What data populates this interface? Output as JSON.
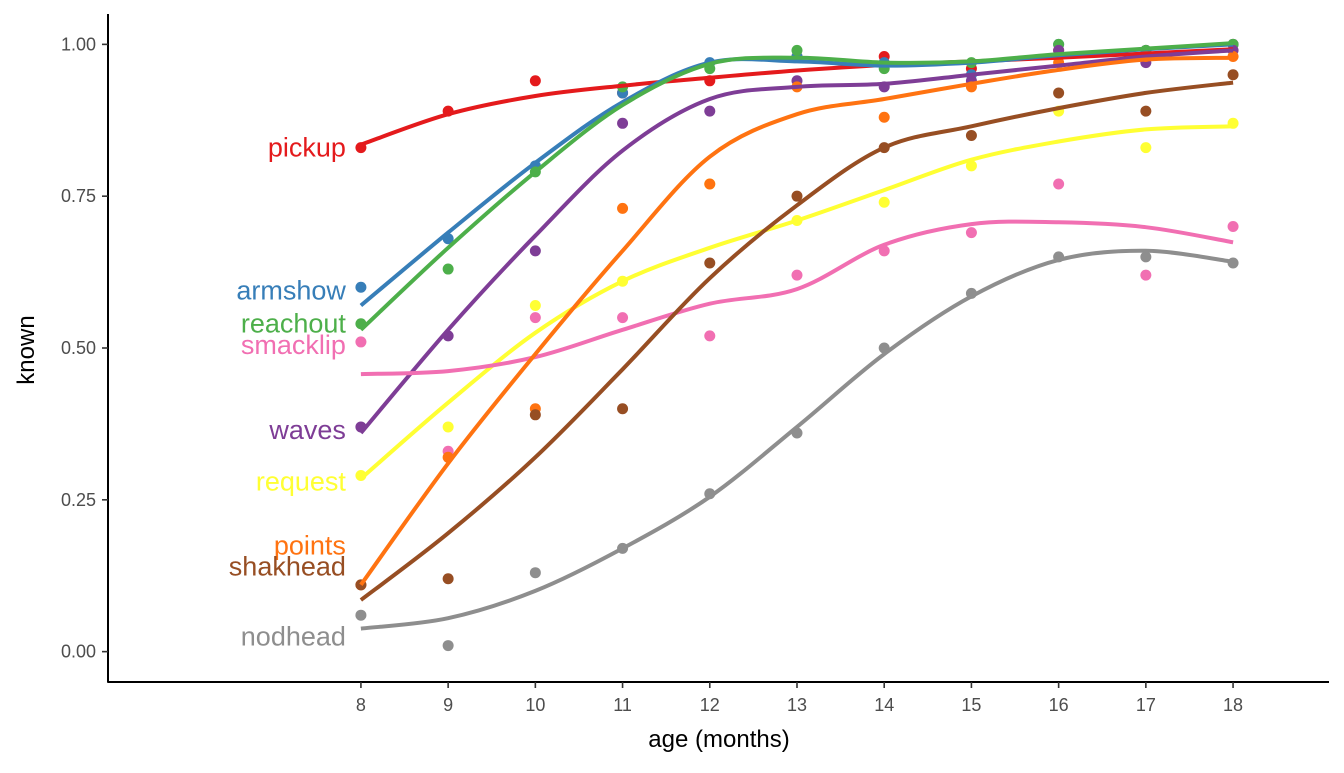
{
  "chart_data": {
    "type": "scatter",
    "title": "",
    "xlabel": "age (months)",
    "ylabel": "known",
    "xlim": [
      5.1,
      19.1
    ],
    "ylim": [
      -0.05,
      1.05
    ],
    "x_ticks": [
      8,
      9,
      10,
      11,
      12,
      13,
      14,
      15,
      16,
      17,
      18
    ],
    "y_ticks": [
      {
        "value": 0.0,
        "label": "0.00"
      },
      {
        "value": 0.25,
        "label": "0.25"
      },
      {
        "value": 0.5,
        "label": "0.50"
      },
      {
        "value": 0.75,
        "label": "0.75"
      },
      {
        "value": 1.0,
        "label": "1.00"
      }
    ],
    "grid": false,
    "legend": "none (direct labels at left)",
    "x": [
      8,
      9,
      10,
      11,
      12,
      13,
      14,
      15,
      16,
      17,
      18
    ],
    "series": [
      {
        "name": "pickup",
        "color": "#E41A1C",
        "points": [
          0.83,
          0.89,
          0.94,
          0.92,
          0.94,
          0.98,
          0.98,
          0.96,
          0.99,
          0.99,
          1.0
        ],
        "smooth": [
          0.835,
          0.885,
          0.915,
          0.932,
          0.945,
          0.957,
          0.966,
          0.972,
          0.978,
          0.985,
          0.992
        ]
      },
      {
        "name": "armshow",
        "color": "#377EB8",
        "points": [
          0.6,
          0.68,
          0.8,
          0.92,
          0.97,
          0.98,
          0.97,
          0.95,
          1.0,
          0.99,
          1.0
        ],
        "smooth": [
          0.57,
          0.69,
          0.805,
          0.905,
          0.97,
          0.972,
          0.965,
          0.97,
          0.982,
          0.992,
          1.0
        ]
      },
      {
        "name": "reachout",
        "color": "#4DAF4A",
        "points": [
          0.54,
          0.63,
          0.79,
          0.93,
          0.96,
          0.99,
          0.96,
          0.97,
          1.0,
          0.99,
          1.0
        ],
        "smooth": [
          0.53,
          0.665,
          0.79,
          0.9,
          0.968,
          0.978,
          0.97,
          0.972,
          0.984,
          0.993,
          1.002
        ]
      },
      {
        "name": "waves",
        "color": "#7E3D96",
        "points": [
          0.37,
          0.52,
          0.66,
          0.87,
          0.89,
          0.94,
          0.93,
          0.94,
          0.99,
          0.97,
          0.99
        ],
        "smooth": [
          0.36,
          0.53,
          0.685,
          0.825,
          0.91,
          0.93,
          0.935,
          0.95,
          0.965,
          0.98,
          0.99
        ]
      },
      {
        "name": "request",
        "color": "#FFFF33",
        "points": [
          0.29,
          0.37,
          0.57,
          0.61,
          0.77,
          0.71,
          0.74,
          0.8,
          0.89,
          0.83,
          0.87
        ],
        "smooth": [
          0.285,
          0.41,
          0.525,
          0.61,
          0.665,
          0.71,
          0.76,
          0.81,
          0.84,
          0.86,
          0.865
        ]
      },
      {
        "name": "smacklip",
        "color": "#F16FB2",
        "points": [
          0.51,
          0.33,
          0.55,
          0.55,
          0.52,
          0.62,
          0.66,
          0.69,
          0.77,
          0.62,
          0.7
        ],
        "smooth": [
          0.457,
          0.462,
          0.485,
          0.53,
          0.573,
          0.597,
          0.67,
          0.704,
          0.707,
          0.699,
          0.674
        ]
      },
      {
        "name": "points",
        "color": "#FF7311",
        "points": [
          0.11,
          0.32,
          0.4,
          0.73,
          0.77,
          0.93,
          0.88,
          0.93,
          0.97,
          0.98,
          0.98
        ],
        "smooth": [
          0.11,
          0.31,
          0.49,
          0.66,
          0.815,
          0.885,
          0.91,
          0.935,
          0.958,
          0.975,
          0.978
        ]
      },
      {
        "name": "shakhead",
        "color": "#974E23",
        "points": [
          0.11,
          0.12,
          0.39,
          0.4,
          0.64,
          0.75,
          0.83,
          0.85,
          0.92,
          0.89,
          0.95
        ],
        "smooth": [
          0.085,
          0.195,
          0.32,
          0.465,
          0.615,
          0.735,
          0.83,
          0.865,
          0.895,
          0.92,
          0.937
        ]
      },
      {
        "name": "nodhead",
        "color": "#8E8E8E",
        "points": [
          0.06,
          0.01,
          0.13,
          0.17,
          0.26,
          0.36,
          0.5,
          0.59,
          0.65,
          0.65,
          0.64
        ],
        "smooth": [
          0.038,
          0.055,
          0.1,
          0.17,
          0.255,
          0.37,
          0.49,
          0.585,
          0.645,
          0.66,
          0.642
        ]
      }
    ],
    "direct_labels": [
      {
        "series": "pickup",
        "text": "pickup",
        "y": 0.83
      },
      {
        "series": "armshow",
        "text": "armshow",
        "y": 0.595
      },
      {
        "series": "reachout",
        "text": "reachout",
        "y": 0.54
      },
      {
        "series": "smacklip",
        "text": "smacklip",
        "y": 0.505
      },
      {
        "series": "waves",
        "text": "waves",
        "y": 0.365
      },
      {
        "series": "request",
        "text": "request",
        "y": 0.28
      },
      {
        "series": "points",
        "text": "points",
        "y": 0.175
      },
      {
        "series": "shakhead",
        "text": "shakhead",
        "y": 0.14
      },
      {
        "series": "nodhead",
        "text": "nodhead",
        "y": 0.025
      }
    ]
  }
}
